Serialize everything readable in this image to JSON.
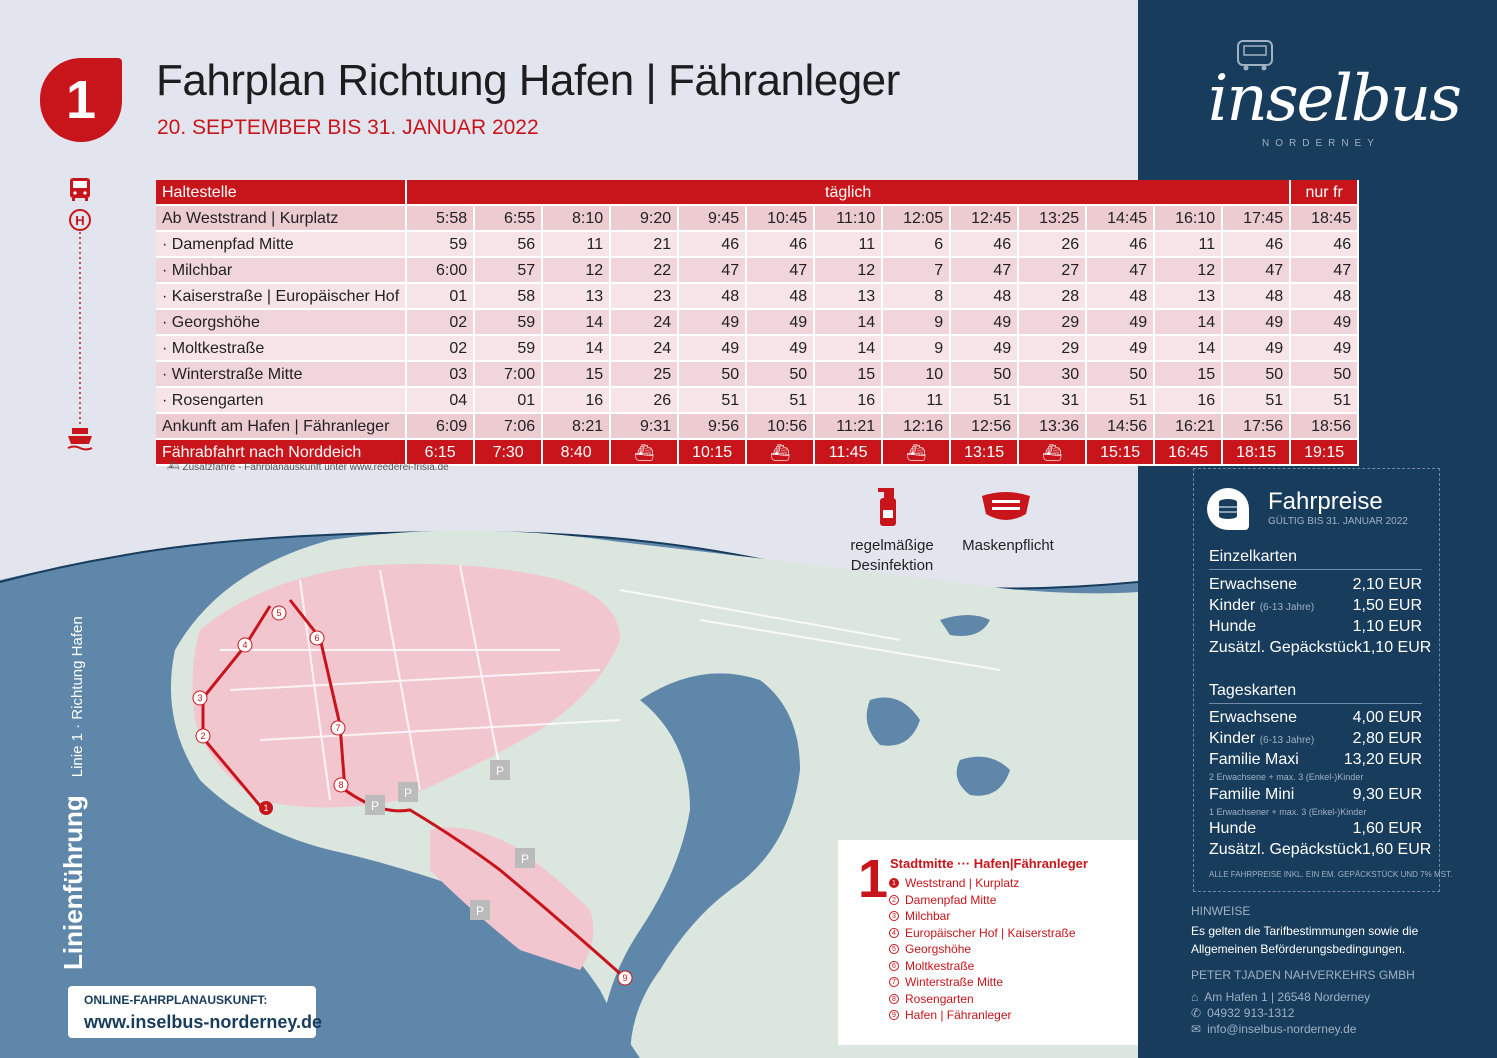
{
  "header": {
    "line_number": "1",
    "title": "Fahrplan Richtung Hafen | Fähranleger",
    "subtitle": "20. SEPTEMBER BIS 31. JANUAR 2022"
  },
  "timetable": {
    "stop_header": "Haltestelle",
    "daily_header": "täglich",
    "special_header": "nur fr",
    "rows": [
      {
        "stop": "Ab Weststrand | Kurplatz",
        "times": [
          "5:58",
          "6:55",
          "8:10",
          "9:20",
          "9:45",
          "10:45",
          "11:10",
          "12:05",
          "12:45",
          "13:25",
          "14:45",
          "16:10",
          "17:45",
          "18:45"
        ]
      },
      {
        "stop": "· Damenpfad Mitte",
        "times": [
          "59",
          "56",
          "11",
          "21",
          "46",
          "46",
          "11",
          "6",
          "46",
          "26",
          "46",
          "11",
          "46",
          "46"
        ]
      },
      {
        "stop": "· Milchbar",
        "times": [
          "6:00",
          "57",
          "12",
          "22",
          "47",
          "47",
          "12",
          "7",
          "47",
          "27",
          "47",
          "12",
          "47",
          "47"
        ]
      },
      {
        "stop": "· Kaiserstraße | Europäischer Hof",
        "times": [
          "01",
          "58",
          "13",
          "23",
          "48",
          "48",
          "13",
          "8",
          "48",
          "28",
          "48",
          "13",
          "48",
          "48"
        ]
      },
      {
        "stop": "· Georgshöhe",
        "times": [
          "02",
          "59",
          "14",
          "24",
          "49",
          "49",
          "14",
          "9",
          "49",
          "29",
          "49",
          "14",
          "49",
          "49"
        ]
      },
      {
        "stop": "· Moltkestraße",
        "times": [
          "02",
          "59",
          "14",
          "24",
          "49",
          "49",
          "14",
          "9",
          "49",
          "29",
          "49",
          "14",
          "49",
          "49"
        ]
      },
      {
        "stop": "· Winterstraße Mitte",
        "times": [
          "03",
          "7:00",
          "15",
          "25",
          "50",
          "50",
          "15",
          "10",
          "50",
          "30",
          "50",
          "15",
          "50",
          "50"
        ]
      },
      {
        "stop": "· Rosengarten",
        "times": [
          "04",
          "01",
          "16",
          "26",
          "51",
          "51",
          "16",
          "11",
          "51",
          "31",
          "51",
          "16",
          "51",
          "51"
        ]
      },
      {
        "stop": "Ankunft am Hafen | Fähranleger",
        "times": [
          "6:09",
          "7:06",
          "8:21",
          "9:31",
          "9:56",
          "10:56",
          "11:21",
          "12:16",
          "12:56",
          "13:36",
          "14:56",
          "16:21",
          "17:56",
          "18:56"
        ]
      }
    ],
    "ferry": {
      "label": "Fährabfahrt nach Norddeich",
      "times": [
        "6:15",
        "7:30",
        "8:40",
        "",
        "10:15",
        "",
        "11:45",
        "",
        "13:15",
        "",
        "15:15",
        "16:45",
        "18:15",
        "19:15"
      ]
    },
    "footnote": "Zusatzfähre - Fahrplanauskunft unter www.reederei-frisia.de"
  },
  "hygiene": {
    "disinfection": "regelmäßige Desinfektion",
    "mask": "Maskenpflicht"
  },
  "map": {
    "side_title": "Linienführung",
    "side_subtitle": "Linie 1 · Richtung Hafen",
    "online_label": "ONLINE-FAHRPLANAUSKUNFT:",
    "online_url": "www.inselbus-norderney.de",
    "parking_labels": [
      "P",
      "P",
      "P",
      "P",
      "P"
    ]
  },
  "route_legend": {
    "number": "1",
    "title": "Stadtmitte ··· Hafen|Fähranleger",
    "stops": [
      {
        "no": "1",
        "name": "Weststrand | Kurplatz"
      },
      {
        "no": "2",
        "name": "Damenpfad Mitte"
      },
      {
        "no": "3",
        "name": "Milchbar"
      },
      {
        "no": "4",
        "name": "Europäischer Hof | Kaiserstraße"
      },
      {
        "no": "5",
        "name": "Georgshöhe"
      },
      {
        "no": "6",
        "name": "Moltkestraße"
      },
      {
        "no": "7",
        "name": "Winterstraße Mitte"
      },
      {
        "no": "8",
        "name": "Rosengarten"
      },
      {
        "no": "9",
        "name": "Hafen | Fähranleger"
      }
    ]
  },
  "brand": {
    "logo": "inselbus",
    "sub": "NORDERNEY"
  },
  "fares": {
    "title": "Fahrpreise",
    "valid": "GÜLTIG BIS 31. JANUAR 2022",
    "single_head": "Einzelkarten",
    "single": [
      {
        "label": "Erwachsene",
        "note": "",
        "price": "2,10 EUR"
      },
      {
        "label": "Kinder",
        "note": "(6-13 Jahre)",
        "price": "1,50 EUR"
      },
      {
        "label": "Hunde",
        "note": "",
        "price": "1,10 EUR"
      },
      {
        "label": "Zusätzl. Gepäckstück",
        "note": "",
        "price": "1,10 EUR"
      }
    ],
    "day_head": "Tageskarten",
    "day": [
      {
        "label": "Erwachsene",
        "note": "",
        "price": "4,00 EUR"
      },
      {
        "label": "Kinder",
        "note": "(6-13 Jahre)",
        "price": "2,80 EUR"
      },
      {
        "label": "Familie Maxi",
        "note": "",
        "price": "13,20 EUR"
      },
      {
        "label": "Familie Mini",
        "note": "",
        "price": "9,30 EUR"
      },
      {
        "label": "Hunde",
        "note": "",
        "price": "1,60 EUR"
      },
      {
        "label": "Zusätzl. Gepäckstück",
        "note": "",
        "price": "1,60 EUR"
      }
    ],
    "maxi_note": "2 Erwachsene + max. 3 (Enkel-)Kinder",
    "mini_note": "1 Erwachsener + max. 3 (Enkel-)Kinder",
    "footnote": "ALLE FAHRPREISE INKL. EIN EM. GEPÄCKSTÜCK UND 7% MST."
  },
  "info": {
    "hinweise_title": "HINWEISE",
    "hinweise_text": "Es gelten die Tarifbestimmungen sowie die Allgemeinen Beförderungsbedingungen.",
    "company": "PETER TJADEN NAHVERKEHRS GMBH",
    "address": "Am Hafen 1 | 26548 Norderney",
    "phone": "04932 913-1312",
    "email": "info@inselbus-norderney.de"
  },
  "colors": {
    "accent_red": "#c8151b",
    "navy": "#173c5c",
    "sea": "#5f87a9",
    "town_pink": "#f1c6cf",
    "green": "#d6e4d9"
  },
  "icons": [
    "bus-icon",
    "stop-h-icon",
    "ship-icon",
    "spray-icon",
    "mask-icon",
    "coins-icon",
    "home-icon",
    "phone-icon",
    "chat-icon",
    "extra-ferry-icon"
  ]
}
